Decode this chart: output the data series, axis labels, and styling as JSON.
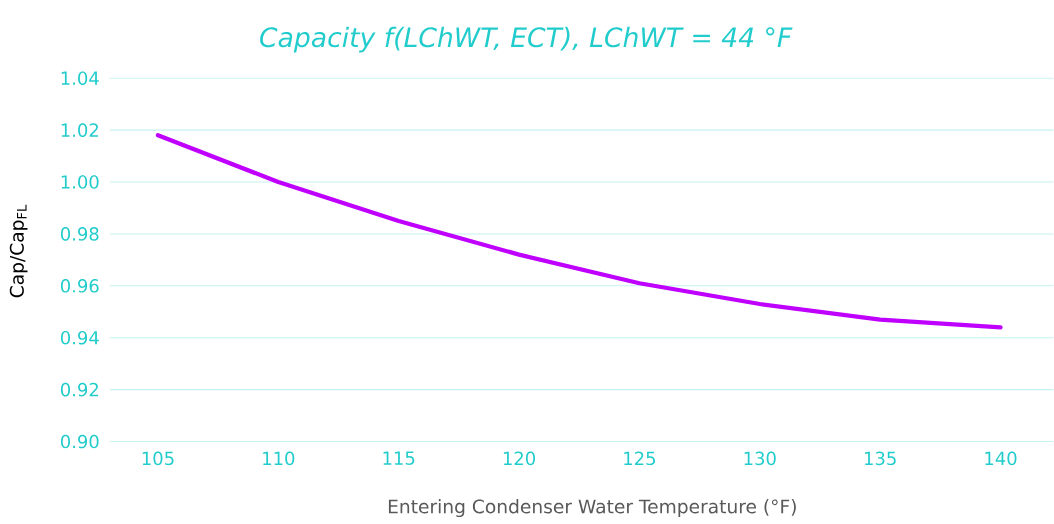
{
  "chart_data": {
    "type": "line",
    "title": "*Capacity f(LChWT, ECT), LChWT = 44 °F*",
    "xlabel": "Entering Condenser Water Temperature (°F)",
    "ylabel": "Cap/Cap$_{FL}$",
    "categories": [
      "105",
      "110",
      "115",
      "120",
      "125",
      "130",
      "135",
      "140"
    ],
    "series": [
      {
        "color": "#bf00ff",
        "values": [
          1.018,
          1.0,
          0.985,
          0.972,
          0.961,
          0.953,
          0.947,
          0.944
        ]
      }
    ],
    "ylim": [
      0.9,
      1.04
    ],
    "yticks": [
      {
        "value": 0.9,
        "label": "0.90"
      },
      {
        "value": 0.92,
        "label": "0.92"
      },
      {
        "value": 0.94,
        "label": "0.94"
      },
      {
        "value": 0.96,
        "label": "0.96"
      },
      {
        "value": 0.98,
        "label": "0.98"
      },
      {
        "value": 1.0,
        "label": "1.00"
      },
      {
        "value": 1.02,
        "label": "1.02"
      },
      {
        "value": 1.04,
        "label": "1.04"
      }
    ],
    "grid": "y",
    "line_style": "solid",
    "marker": "none"
  }
}
